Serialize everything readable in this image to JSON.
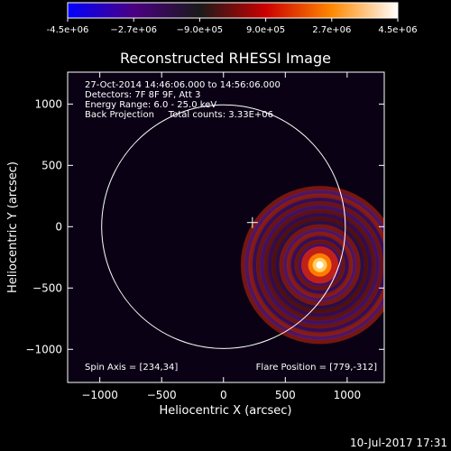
{
  "chart_data": {
    "type": "heatmap",
    "title": "Reconstructed RHESSI Image",
    "xlabel": "Heliocentric X (arcsec)",
    "ylabel": "Heliocentric Y (arcsec)",
    "xlim": [
      -1260,
      1300
    ],
    "ylim": [
      -1270,
      1260
    ],
    "x_ticks": [
      -1000,
      -500,
      0,
      500,
      1000
    ],
    "x_tick_labels": [
      "−1000",
      "−500",
      "0",
      "500",
      "1000"
    ],
    "y_ticks": [
      1000,
      500,
      0,
      -500,
      -1000
    ],
    "y_tick_labels": [
      "1000",
      "500",
      "0",
      "−500",
      "−1000"
    ],
    "colorbar": {
      "range": [
        -4500000.0,
        4500000.0
      ],
      "tick_values": [
        -4500000.0,
        -2700000.0,
        -900000.0,
        900000.0,
        2700000.0,
        4500000.0
      ],
      "tick_labels": [
        "-4.5e+06",
        "−2.7e+06",
        "−9.0e+05",
        "9.0e+05",
        "2.7e+06",
        "4.5e+06"
      ],
      "colors": [
        "#0000ff",
        "#4b0082",
        "#1a1a1a",
        "#cc0000",
        "#ff8800",
        "#ffffff"
      ]
    },
    "annotations": [
      "27-Oct-2014 14:46:06.000 to 14:56:06.000",
      "Detectors: 7F 8F 9F, Att 3",
      "Energy Range: 6.0 - 25.0 keV",
      "Back Projection     Total counts: 3.33E+06"
    ],
    "spin_axis_text": "Spin Axis = [234,34]",
    "flare_position_text": "Flare Position = [779,-312]",
    "spin_axis": [
      234,
      34
    ],
    "flare_position": [
      779,
      -312
    ],
    "solar_limb": {
      "center": [
        0,
        0
      ],
      "radius_arcsec": 985
    }
  },
  "footer": {
    "timestamp": "10-Jul-2017 17:31"
  }
}
